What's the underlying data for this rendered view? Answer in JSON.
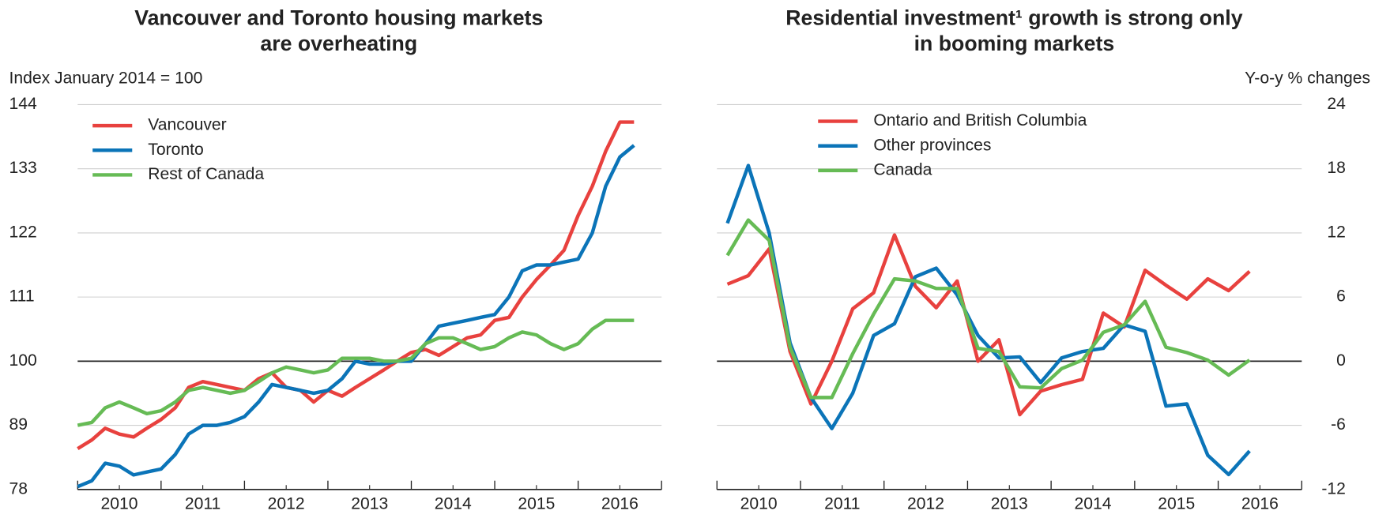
{
  "chart_data": [
    {
      "type": "line",
      "title": [
        "Vancouver and Toronto housing markets",
        "are overheating"
      ],
      "y_label": "Index January 2014 = 100",
      "x": [
        2010,
        2010.17,
        2010.33,
        2010.5,
        2010.67,
        2010.83,
        2011,
        2011.17,
        2011.33,
        2011.5,
        2011.67,
        2011.83,
        2012,
        2012.17,
        2012.33,
        2012.5,
        2012.67,
        2012.83,
        2013,
        2013.17,
        2013.33,
        2013.5,
        2013.67,
        2013.83,
        2014,
        2014.17,
        2014.33,
        2014.5,
        2014.67,
        2014.83,
        2015,
        2015.17,
        2015.33,
        2015.5,
        2015.67,
        2015.83,
        2016,
        2016.17,
        2016.33,
        2016.5,
        2016.67
      ],
      "xlim": [
        2010,
        2017
      ],
      "xticks": [
        {
          "value": 2010.5,
          "label": "2010"
        },
        {
          "value": 2011.5,
          "label": "2011"
        },
        {
          "value": 2012.5,
          "label": "2012"
        },
        {
          "value": 2013.5,
          "label": "2013"
        },
        {
          "value": 2014.5,
          "label": "2014"
        },
        {
          "value": 2015.5,
          "label": "2015"
        },
        {
          "value": 2016.5,
          "label": "2016"
        }
      ],
      "minor_xticks": [
        2010,
        2011,
        2012,
        2013,
        2014,
        2015,
        2016,
        2017
      ],
      "ylim": [
        78,
        144
      ],
      "yticks": [
        78,
        89,
        100,
        111,
        122,
        133,
        144
      ],
      "hline": 100,
      "grid": true,
      "legend": "top-left",
      "series": [
        {
          "name": "Vancouver",
          "color": "#e8413e",
          "values": [
            85,
            86.5,
            88.5,
            87.5,
            87,
            88.5,
            90,
            92,
            95.5,
            96.5,
            96,
            95.5,
            95,
            97,
            98,
            95.5,
            95,
            93,
            95,
            94,
            95.5,
            97,
            98.5,
            100,
            101.5,
            102,
            101,
            102.5,
            104,
            104.5,
            107,
            107.5,
            111,
            114,
            116.5,
            119,
            125,
            130,
            136,
            141,
            141
          ]
        },
        {
          "name": "Toronto",
          "color": "#0b74b8",
          "values": [
            78.5,
            79.5,
            82.5,
            82,
            80.5,
            81,
            81.5,
            84,
            87.5,
            89,
            89,
            89.5,
            90.5,
            93,
            96,
            95.5,
            95,
            94.5,
            95,
            97,
            100,
            99.5,
            99.5,
            100,
            100,
            103,
            106,
            106.5,
            107,
            107.5,
            108,
            111,
            115.5,
            116.5,
            116.5,
            117,
            117.5,
            122,
            130,
            135,
            137
          ]
        },
        {
          "name": "Rest of Canada",
          "color": "#66bb55",
          "values": [
            89,
            89.5,
            92,
            93,
            92,
            91,
            91.5,
            93,
            95,
            95.5,
            95,
            94.5,
            95,
            96.5,
            98,
            99,
            98.5,
            98,
            98.5,
            100.5,
            100.5,
            100.5,
            100,
            100,
            100.5,
            103,
            104,
            104,
            103,
            102,
            102.5,
            104,
            105,
            104.5,
            103,
            102,
            103,
            105.5,
            107,
            107,
            107
          ]
        }
      ]
    },
    {
      "type": "line",
      "title": [
        "Residential investment¹ growth is strong only",
        "in booming markets"
      ],
      "y2_label": "Y-o-y % changes",
      "x": [
        2010.125,
        2010.375,
        2010.625,
        2010.875,
        2011.125,
        2011.375,
        2011.625,
        2011.875,
        2012.125,
        2012.375,
        2012.625,
        2012.875,
        2013.125,
        2013.375,
        2013.625,
        2013.875,
        2014.125,
        2014.375,
        2014.625,
        2014.875,
        2015.125,
        2015.375,
        2015.625,
        2015.875,
        2016.125,
        2016.375
      ],
      "xlim": [
        2010,
        2017
      ],
      "xticks": [
        {
          "value": 2010.5,
          "label": "2010"
        },
        {
          "value": 2011.5,
          "label": "2011"
        },
        {
          "value": 2012.5,
          "label": "2012"
        },
        {
          "value": 2013.5,
          "label": "2013"
        },
        {
          "value": 2014.5,
          "label": "2014"
        },
        {
          "value": 2015.5,
          "label": "2015"
        },
        {
          "value": 2016.5,
          "label": "2016"
        }
      ],
      "minor_xticks": [
        2010,
        2011,
        2012,
        2013,
        2014,
        2015,
        2016,
        2017
      ],
      "y2lim": [
        -12,
        24
      ],
      "y2ticks": [
        -12,
        -6,
        0,
        6,
        12,
        18,
        24
      ],
      "hline": 0,
      "grid": true,
      "legend": "top-left",
      "series": [
        {
          "name": "Ontario and British Columbia",
          "color": "#e8413e",
          "axis": "y2",
          "values": [
            7.2,
            8,
            10.5,
            0.9,
            -4,
            0,
            4.9,
            6.4,
            11.8,
            7,
            5,
            7.5,
            0,
            2,
            -5,
            -2.8,
            -2.2,
            -1.7,
            4.5,
            3.2,
            8.5,
            7.1,
            5.8,
            7.7,
            6.6,
            8.4
          ]
        },
        {
          "name": "Other provinces",
          "color": "#0b74b8",
          "axis": "y2",
          "values": [
            12.9,
            18.3,
            12,
            1.7,
            -3.4,
            -6.3,
            -3,
            2.4,
            3.5,
            7.9,
            8.7,
            6.2,
            2.4,
            0.3,
            0.4,
            -2,
            0.3,
            0.9,
            1.2,
            3.4,
            2.8,
            -4.2,
            -4,
            -8.8,
            -10.6,
            -8.4
          ]
        },
        {
          "name": "Canada",
          "color": "#66bb55",
          "axis": "y2",
          "values": [
            9.9,
            13.2,
            11.3,
            1.3,
            -3.4,
            -3.4,
            0.7,
            4.4,
            7.7,
            7.5,
            6.8,
            6.8,
            1.2,
            0.9,
            -2.4,
            -2.5,
            -0.7,
            0.1,
            2.7,
            3.4,
            5.6,
            1.3,
            0.8,
            0.1,
            -1.3,
            0.1
          ]
        }
      ]
    }
  ]
}
